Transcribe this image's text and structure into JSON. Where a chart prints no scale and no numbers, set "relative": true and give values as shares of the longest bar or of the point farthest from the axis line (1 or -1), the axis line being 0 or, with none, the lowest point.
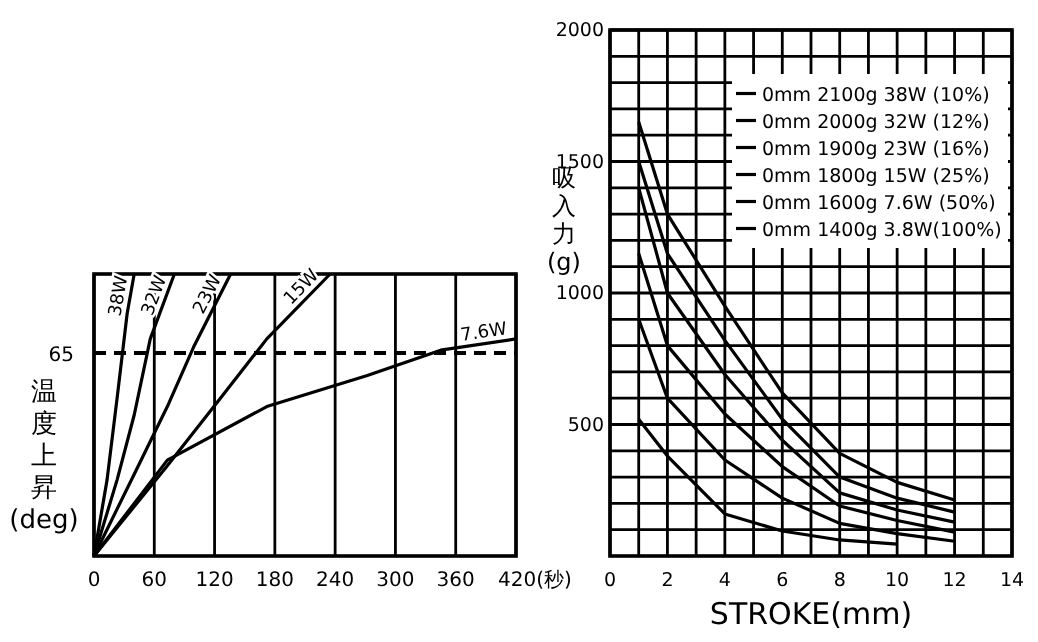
{
  "chart_data": [
    {
      "type": "line",
      "relative": true,
      "ylabel": "温度上昇(deg)",
      "xlim": [
        0,
        420
      ],
      "xticks": [
        0,
        60,
        120,
        180,
        240,
        300,
        360,
        {
          "value": 420,
          "label": "420(秒)"
        }
      ],
      "grid": true,
      "ref_lines": [
        {
          "axis": "y",
          "value": 0.72,
          "line_style": "dashed",
          "color": "#000000"
        }
      ],
      "annotations": [
        "65"
      ],
      "series": [
        {
          "name": "38W",
          "color": "#000000",
          "x": [
            0,
            13,
            23,
            33,
            40
          ],
          "values": [
            0,
            0.27,
            0.56,
            0.86,
            1
          ]
        },
        {
          "name": "32W",
          "color": "#000000",
          "x": [
            0,
            23,
            40,
            56,
            80
          ],
          "values": [
            0,
            0.27,
            0.5,
            0.77,
            1
          ]
        },
        {
          "name": "23W",
          "color": "#000000",
          "x": [
            0,
            40,
            73,
            99,
            136
          ],
          "values": [
            0,
            0.29,
            0.53,
            0.74,
            1
          ]
        },
        {
          "name": "15W",
          "color": "#000000",
          "x": [
            0,
            73,
            126,
            172,
            235
          ],
          "values": [
            0,
            0.32,
            0.56,
            0.77,
            1
          ]
        },
        {
          "name": "7.6W",
          "color": "#000000",
          "x": [
            0,
            73,
            172,
            272,
            345,
            420
          ],
          "values": [
            0,
            0.34,
            0.53,
            0.64,
            0.73,
            0.77
          ]
        }
      ]
    },
    {
      "type": "line",
      "xlabel": "STROKE(mm)",
      "ylabel": "吸入力(g)",
      "xlim": [
        0,
        14
      ],
      "ylim": [
        0,
        2000
      ],
      "xticks": [
        0,
        {
          "value": 1,
          "label": null
        },
        2,
        {
          "value": 3,
          "label": null
        },
        4,
        {
          "value": 5,
          "label": null
        },
        6,
        {
          "value": 7,
          "label": null
        },
        8,
        {
          "value": 9,
          "label": null
        },
        10,
        {
          "value": 11,
          "label": null
        },
        12,
        {
          "value": 13,
          "label": null
        },
        14
      ],
      "yticks": [
        {
          "value": 100,
          "label": null
        },
        {
          "value": 200,
          "label": null
        },
        {
          "value": 300,
          "label": null
        },
        {
          "value": 400,
          "label": null
        },
        500,
        {
          "value": 600,
          "label": null
        },
        {
          "value": 700,
          "label": null
        },
        {
          "value": 800,
          "label": null
        },
        {
          "value": 900,
          "label": null
        },
        1000,
        {
          "value": 1100,
          "label": null
        },
        {
          "value": 1200,
          "label": null
        },
        {
          "value": 1300,
          "label": null
        },
        {
          "value": 1400,
          "label": null
        },
        1500,
        {
          "value": 1600,
          "label": null
        },
        {
          "value": 1700,
          "label": null
        },
        {
          "value": 1800,
          "label": null
        },
        {
          "value": 1900,
          "label": null
        },
        2000
      ],
      "grid": true,
      "legend": "top right",
      "x": [
        1,
        2,
        4,
        6,
        8,
        10,
        12
      ],
      "series": [
        {
          "name": "0mm 2100g 38W (10%)",
          "color": "#000000",
          "values": [
            1650,
            1300,
            950,
            620,
            390,
            280,
            213
          ]
        },
        {
          "name": "0mm 2000g 32W (12%)",
          "color": "#000000",
          "values": [
            1500,
            1150,
            820,
            520,
            300,
            220,
            167
          ]
        },
        {
          "name": "0mm 1900g 23W (16%)",
          "color": "#000000",
          "values": [
            1400,
            1000,
            690,
            440,
            240,
            175,
            129
          ]
        },
        {
          "name": "0mm 1800g 15W (25%)",
          "color": "#000000",
          "values": [
            1150,
            800,
            540,
            340,
            190,
            135,
            91
          ]
        },
        {
          "name": "0mm 1600g 7.6W (50%)",
          "color": "#000000",
          "values": [
            900,
            600,
            365,
            220,
            124,
            85,
            56
          ]
        },
        {
          "name": "0mm 1400g 3.8W(100%)",
          "color": "#000000",
          "values": [
            520,
            380,
            160,
            95,
            61,
            45,
            null
          ]
        }
      ]
    }
  ]
}
